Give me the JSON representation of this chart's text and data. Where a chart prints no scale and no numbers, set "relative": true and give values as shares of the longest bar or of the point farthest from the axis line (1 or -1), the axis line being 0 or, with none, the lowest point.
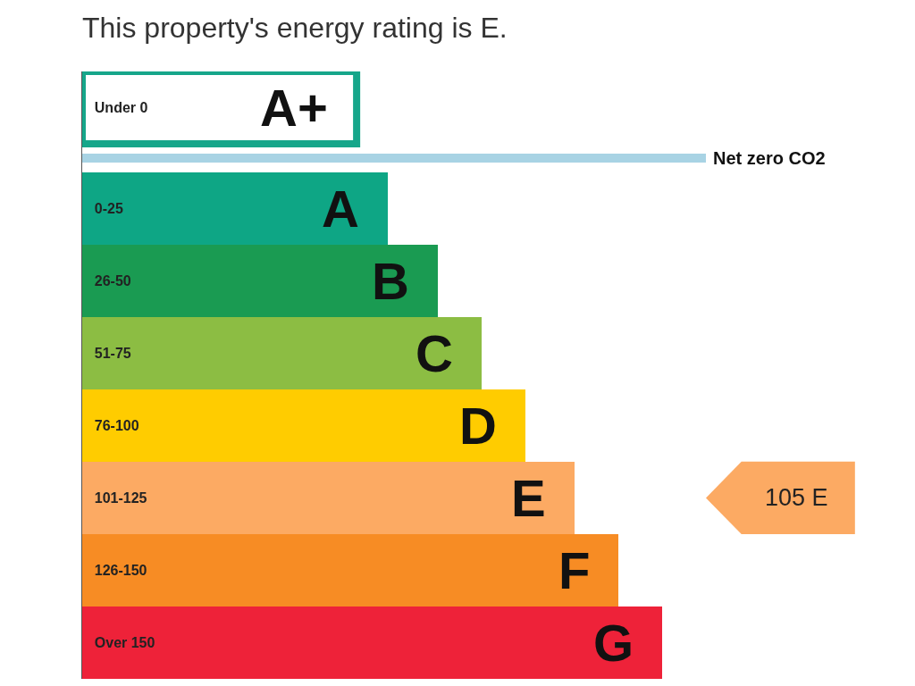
{
  "chart_data": {
    "type": "bar",
    "orientation": "horizontal",
    "relative": true,
    "title": "This property's energy rating is E.",
    "categories": [
      "Under 0",
      null,
      "0-25",
      "26-50",
      "51-75",
      "76-100",
      "101-125",
      "126-150",
      "Over 150"
    ],
    "series": [
      {
        "color": "#16a68a",
        "line_style": "solid",
        "values": [
          0.44,
          null,
          null,
          null,
          null,
          null,
          null,
          null,
          null
        ]
      },
      {
        "colors": [
          null,
          "#a8d3e4",
          "#0ea685",
          "#1a9b52",
          "#8cbd43",
          "#ffcc00",
          "#fcaa63",
          "#f78c24",
          "#ee2239"
        ],
        "values": [
          null,
          1,
          0.49,
          0.57,
          0.64,
          0.71,
          0.79,
          0.86,
          0.93
        ]
      }
    ],
    "annotations": [
      "Net zero CO2",
      "105 E",
      {
        "text": "A+",
        "x": 0.44,
        "y": "Under 0"
      },
      {
        "text": "A",
        "x": 0.49,
        "y": "0-25"
      },
      {
        "text": "B",
        "x": 0.57,
        "y": "26-50"
      },
      {
        "text": "C",
        "x": 0.64,
        "y": "51-75"
      },
      {
        "text": "D",
        "x": 0.71,
        "y": "76-100"
      },
      {
        "text": "E",
        "x": 0.79,
        "y": "101-125"
      },
      {
        "text": "F",
        "x": 0.86,
        "y": "126-150"
      },
      {
        "text": "G",
        "x": 0.93,
        "y": "Over 150"
      }
    ]
  }
}
